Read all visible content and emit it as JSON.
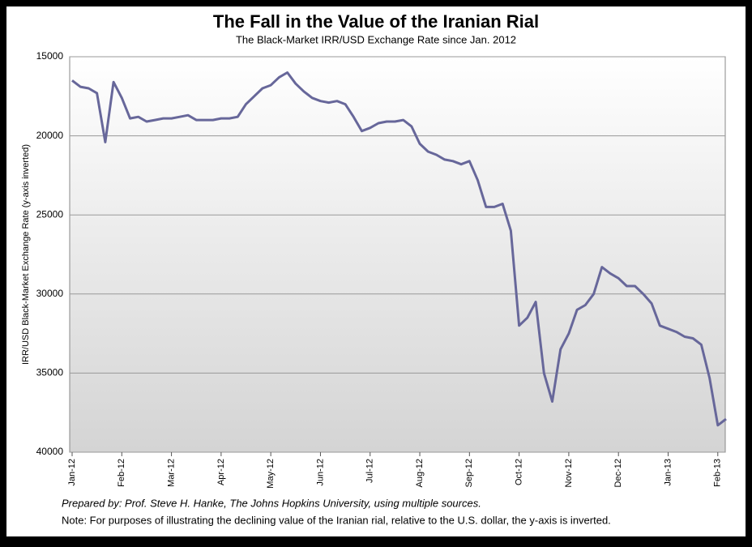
{
  "chart_data": {
    "type": "line",
    "title": "The Fall in the Value of the Iranian Rial",
    "subtitle": "The Black-Market IRR/USD Exchange Rate since Jan. 2012",
    "y_label": "IRR/USD Black-Market Exchange Rate (y-axis inverted)",
    "annotations": [
      "Prepared by: Prof. Steve H. Hanke, The Johns Hopkins University, using multiple sources.",
      "Note: For purposes of illustrating the declining value of the Iranian rial, relative to the U.S. dollar, the y-axis is inverted."
    ],
    "categories": [
      "Jan-12",
      null,
      null,
      null,
      null,
      null,
      "Feb-12",
      null,
      null,
      null,
      null,
      null,
      "Mar-12",
      null,
      null,
      null,
      null,
      null,
      "Apr-12",
      null,
      null,
      null,
      null,
      null,
      "May-12",
      null,
      null,
      null,
      null,
      null,
      "Jun-12",
      null,
      null,
      null,
      null,
      null,
      "Jul-12",
      null,
      null,
      null,
      null,
      null,
      "Aug-12",
      null,
      null,
      null,
      null,
      null,
      "Sep-12",
      null,
      null,
      null,
      null,
      null,
      "Oct-12",
      null,
      null,
      null,
      null,
      null,
      "Nov-12",
      null,
      null,
      null,
      null,
      null,
      "Dec-12",
      null,
      null,
      null,
      null,
      null,
      "Jan-13",
      null,
      null,
      null,
      null,
      null,
      "Feb-13",
      null
    ],
    "series": [
      {
        "name": "IRR/USD",
        "color": "#67679a",
        "values": [
          16500,
          16900,
          17000,
          17300,
          20400,
          16600,
          17600,
          18900,
          18800,
          19100,
          19000,
          18900,
          18900,
          18800,
          18700,
          19000,
          19000,
          19000,
          18900,
          18900,
          18800,
          18000,
          17500,
          17000,
          16800,
          16300,
          16000,
          16700,
          17200,
          17600,
          17800,
          17900,
          17800,
          18000,
          18800,
          19700,
          19500,
          19200,
          19100,
          19100,
          19000,
          19400,
          20500,
          21000,
          21200,
          21500,
          21600,
          21800,
          21600,
          22800,
          24500,
          24500,
          24300,
          26000,
          32000,
          31500,
          30500,
          35000,
          36800,
          33500,
          32500,
          31000,
          30700,
          30000,
          28300,
          28700,
          29000,
          29500,
          29500,
          30000,
          30600,
          32000,
          32200,
          32400,
          32700,
          32800,
          33200,
          35300,
          38300,
          37900
        ]
      }
    ],
    "ylim": [
      15000,
      40000
    ],
    "y_inverted": true,
    "yticks": [
      15000,
      20000,
      25000,
      30000,
      35000,
      40000
    ],
    "grid": true
  }
}
